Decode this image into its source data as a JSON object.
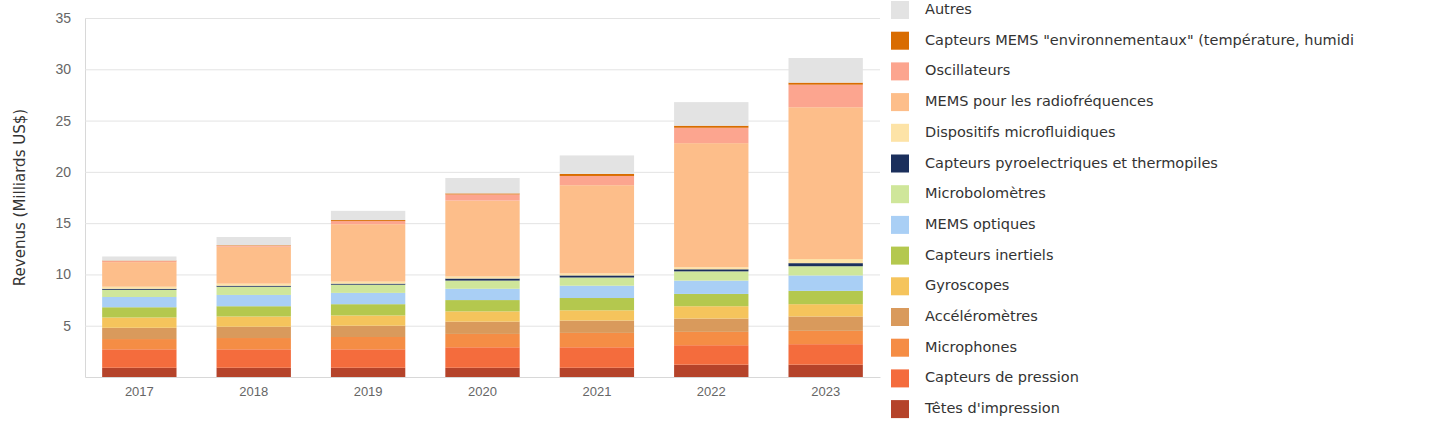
{
  "chart_data": {
    "type": "bar",
    "stacked": true,
    "grid": true,
    "legend": "right",
    "y_label": "Revenus (Milliards US$)",
    "categories": [
      "2017",
      "2018",
      "2019",
      "2020",
      "2021",
      "2022",
      "2023"
    ],
    "ylim": [
      0,
      35
    ],
    "yticks": [
      5,
      10,
      15,
      20,
      25,
      30,
      35
    ],
    "series": [
      {
        "name": "Têtes d'impression",
        "color": "#b5432a",
        "values": [
          0.9,
          0.9,
          0.9,
          0.9,
          0.9,
          1.2,
          1.2
        ]
      },
      {
        "name": "Capteurs de pression",
        "color": "#f46c3d",
        "values": [
          1.8,
          1.8,
          1.8,
          2.0,
          2.0,
          1.9,
          2.0
        ]
      },
      {
        "name": "Microphones",
        "color": "#f58d45",
        "values": [
          1.0,
          1.1,
          1.2,
          1.3,
          1.4,
          1.3,
          1.3
        ]
      },
      {
        "name": "Accéléromètres",
        "color": "#d99a5c",
        "values": [
          1.1,
          1.1,
          1.1,
          1.2,
          1.2,
          1.3,
          1.4
        ]
      },
      {
        "name": "Gyroscopes",
        "color": "#f5c45c",
        "values": [
          1.0,
          1.0,
          1.0,
          1.0,
          1.0,
          1.2,
          1.2
        ]
      },
      {
        "name": "Capteurs inertiels",
        "color": "#b4c84e",
        "values": [
          1.0,
          1.0,
          1.1,
          1.1,
          1.2,
          1.2,
          1.3
        ]
      },
      {
        "name": "MEMS optiques",
        "color": "#a9cff5",
        "values": [
          1.0,
          1.1,
          1.1,
          1.1,
          1.2,
          1.3,
          1.5
        ]
      },
      {
        "name": "Microbolomètres",
        "color": "#cfe69a",
        "values": [
          0.7,
          0.8,
          0.8,
          0.8,
          0.8,
          0.9,
          0.9
        ]
      },
      {
        "name": "Capteurs pyroelectriques et thermopiles",
        "color": "#1b2f5c",
        "values": [
          0.1,
          0.1,
          0.1,
          0.2,
          0.2,
          0.2,
          0.3
        ]
      },
      {
        "name": "Dispositifs microfluidiques",
        "color": "#fde3a7",
        "values": [
          0.2,
          0.2,
          0.2,
          0.2,
          0.2,
          0.2,
          0.4
        ]
      },
      {
        "name": "MEMS pour les radiofréquences",
        "color": "#fdbe8a",
        "values": [
          2.4,
          3.6,
          5.6,
          7.4,
          8.6,
          12.1,
          14.8
        ]
      },
      {
        "name": "Oscillateurs",
        "color": "#fca58f",
        "values": [
          0.1,
          0.1,
          0.3,
          0.6,
          0.9,
          1.5,
          2.2
        ]
      },
      {
        "name": "Capteurs MEMS \"environnementaux\" (température, humidi",
        "color": "#d96c00",
        "values": [
          0.05,
          0.05,
          0.1,
          0.1,
          0.2,
          0.2,
          0.2
        ]
      },
      {
        "name": "Autres",
        "color": "#e3e3e3",
        "values": [
          0.4,
          0.8,
          0.9,
          1.5,
          1.8,
          2.3,
          2.4
        ]
      }
    ]
  }
}
